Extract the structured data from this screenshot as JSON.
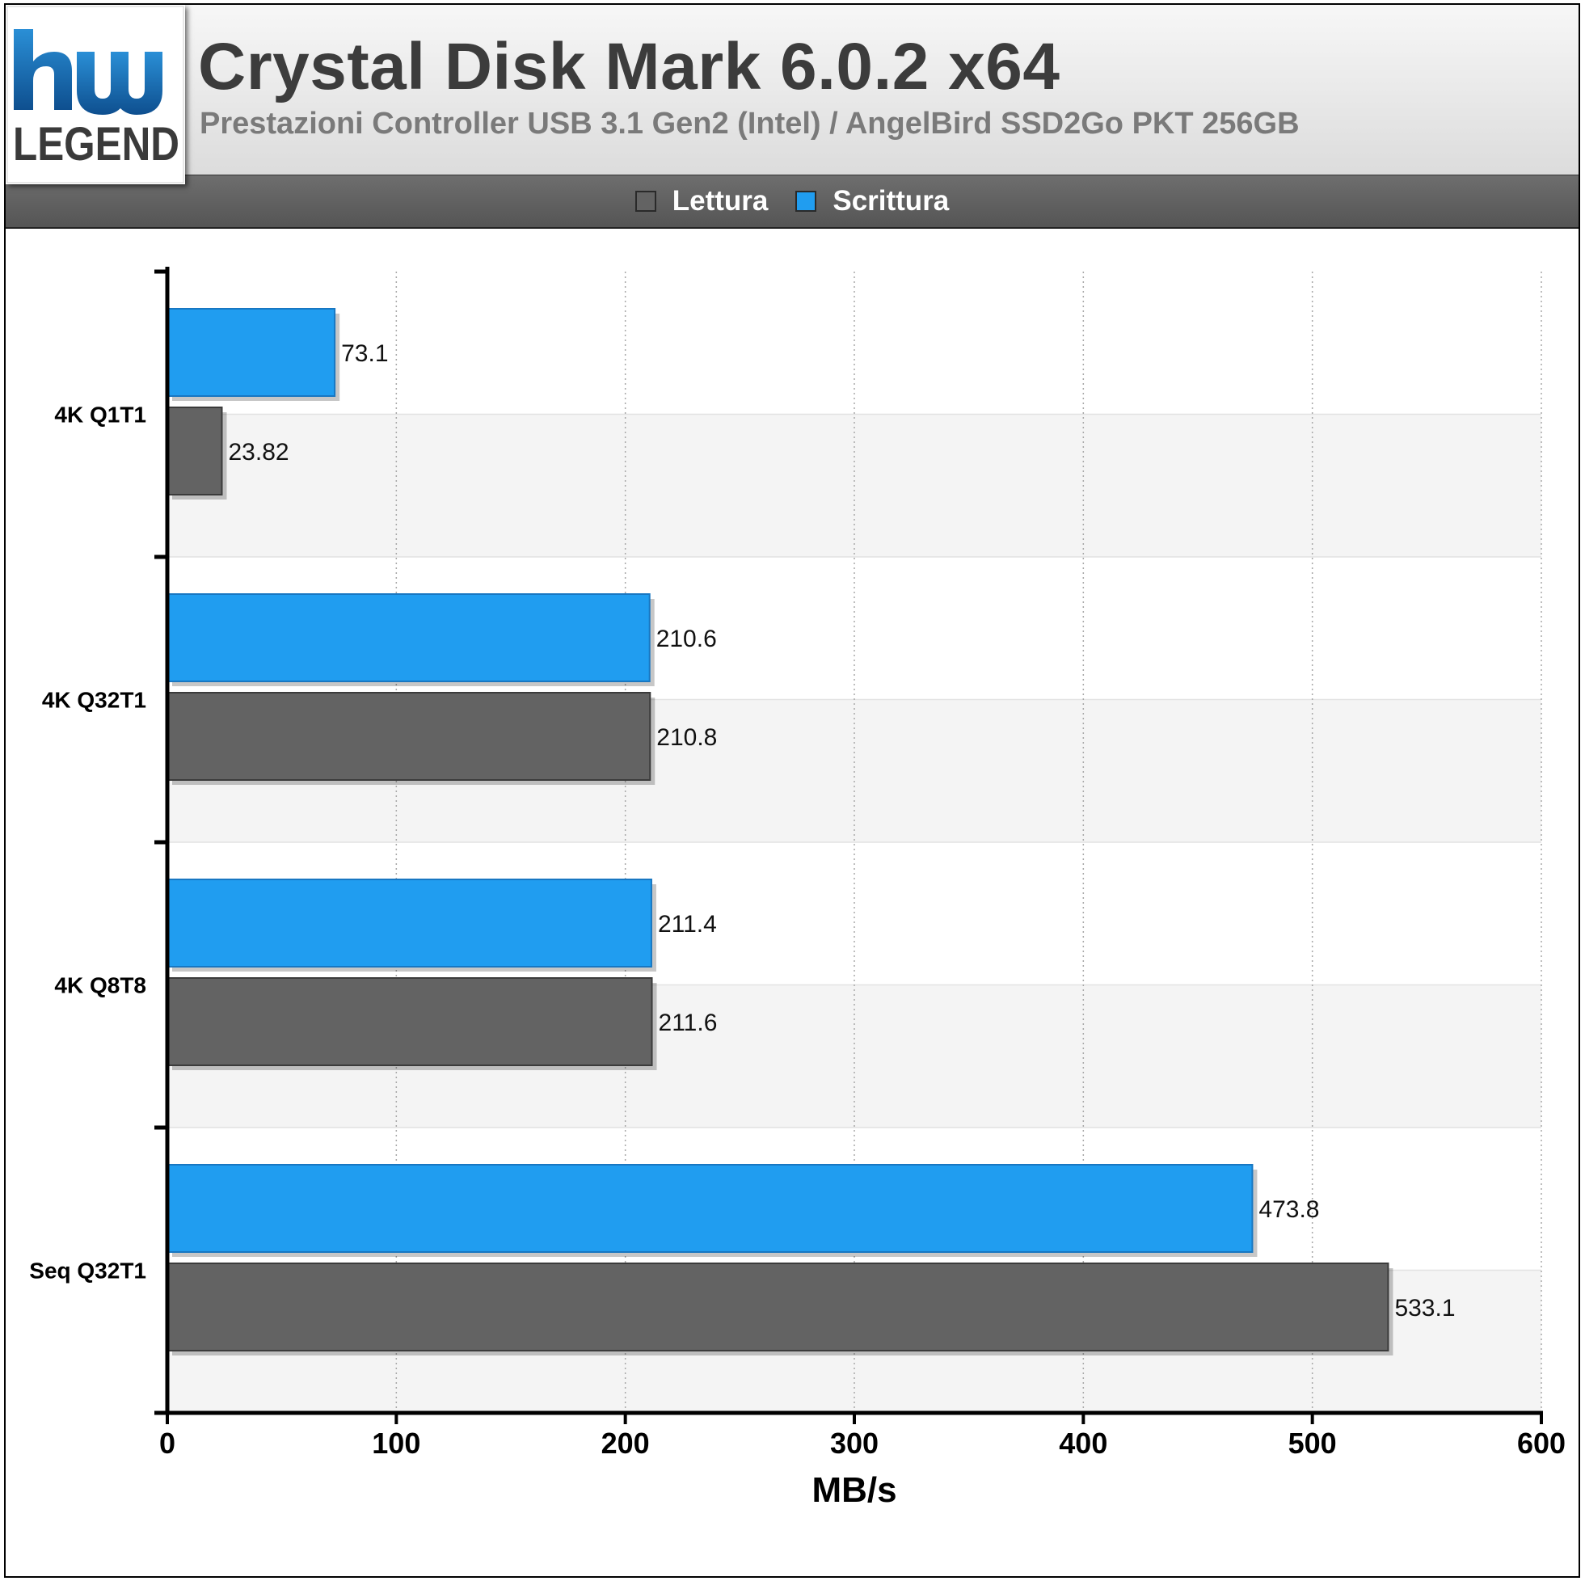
{
  "logo": {
    "mark": "hw",
    "text": "LEGEND"
  },
  "header": {
    "title": "Crystal Disk Mark 6.0.2 x64",
    "subtitle": "Prestazioni Controller USB 3.1 Gen2 (Intel) / AngelBird SSD2Go PKT 256GB"
  },
  "colors": {
    "read": "#636363",
    "write": "#209df0",
    "band": "#f4f4f4"
  },
  "chart_data": {
    "type": "bar",
    "orientation": "horizontal",
    "categories": [
      "4K Q1T1",
      "4K Q32T1",
      "4K Q8T8",
      "Seq Q32T1"
    ],
    "series": [
      {
        "name": "Scrittura",
        "color": "#209df0",
        "values": [
          73.1,
          210.6,
          211.4,
          473.8
        ],
        "labels": [
          "73.1",
          "210.6",
          "211.4",
          "473.8"
        ]
      },
      {
        "name": "Lettura",
        "color": "#636363",
        "values": [
          23.82,
          210.8,
          211.6,
          533.1
        ],
        "labels": [
          "23.82",
          "210.8",
          "211.6",
          "533.1"
        ]
      }
    ],
    "legend": [
      {
        "name": "Lettura",
        "color": "#636363"
      },
      {
        "name": "Scrittura",
        "color": "#209df0"
      }
    ],
    "legend_position": "top-center",
    "xlabel": "MB/s",
    "ylabel": "",
    "xlim": [
      0,
      600
    ],
    "xticks": [
      0,
      100,
      200,
      300,
      400,
      500,
      600
    ],
    "grid": true
  }
}
